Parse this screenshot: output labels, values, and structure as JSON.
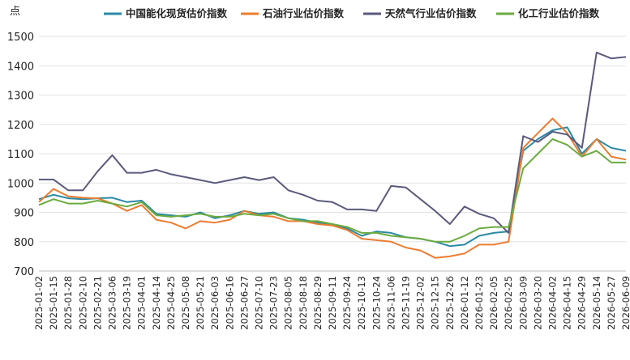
{
  "chart_data": {
    "type": "line",
    "ylabel": "点",
    "ylim": [
      700,
      1500
    ],
    "yticks": [
      700,
      800,
      900,
      1000,
      1100,
      1200,
      1300,
      1400,
      1500
    ],
    "grid": true,
    "legend_position": "top",
    "x": [
      "2025-01-02",
      "2025-01-15",
      "2025-01-28",
      "2025-02-10",
      "2025-02-21",
      "2025-03-06",
      "2025-03-19",
      "2025-04-01",
      "2025-04-14",
      "2025-04-25",
      "2025-05-08",
      "2025-05-21",
      "2025-06-03",
      "2025-06-16",
      "2025-06-27",
      "2025-07-10",
      "2025-07-23",
      "2025-08-05",
      "2025-08-18",
      "2025-08-29",
      "2025-09-11",
      "2025-09-24",
      "2025-10-13",
      "2025-10-24",
      "2025-11-06",
      "2025-11-19",
      "2025-12-02",
      "2025-12-15",
      "2025-12-26",
      "2026-01-12",
      "2026-01-23",
      "2026-02-05",
      "2026-02-25",
      "2026-03-09",
      "2026-03-20",
      "2026-04-02",
      "2026-04-15",
      "2026-04-29",
      "2026-05-14",
      "2026-05-27",
      "2026-06-09"
    ],
    "series": [
      {
        "name": "中国能化现货估价指数",
        "color": "#2a8aa4",
        "values": [
          945,
          960,
          948,
          945,
          948,
          950,
          935,
          940,
          895,
          890,
          885,
          900,
          880,
          890,
          905,
          895,
          900,
          880,
          875,
          865,
          860,
          845,
          820,
          835,
          830,
          815,
          810,
          800,
          785,
          790,
          820,
          830,
          835,
          1110,
          1150,
          1180,
          1190,
          1100,
          1150,
          1120,
          1110
        ]
      },
      {
        "name": "石油行业估价指数",
        "color": "#ec7c31",
        "values": [
          935,
          980,
          955,
          950,
          948,
          930,
          905,
          925,
          875,
          865,
          845,
          870,
          865,
          875,
          905,
          890,
          885,
          870,
          870,
          860,
          855,
          840,
          810,
          805,
          800,
          780,
          770,
          745,
          750,
          760,
          790,
          790,
          800,
          1120,
          1170,
          1220,
          1170,
          1090,
          1150,
          1090,
          1080
        ]
      },
      {
        "name": "天然气行业估价指数",
        "color": "#5b5a7d",
        "values": [
          1012,
          1012,
          975,
          975,
          1040,
          1095,
          1035,
          1035,
          1045,
          1030,
          1020,
          1010,
          1000,
          1010,
          1020,
          1010,
          1020,
          975,
          960,
          940,
          935,
          910,
          910,
          905,
          990,
          985,
          945,
          905,
          860,
          920,
          895,
          880,
          830,
          1160,
          1140,
          1175,
          1165,
          1120,
          1445,
          1425,
          1430
        ]
      },
      {
        "name": "化工行业估价指数",
        "color": "#6bab3f",
        "values": [
          925,
          945,
          930,
          930,
          940,
          930,
          920,
          935,
          890,
          885,
          890,
          895,
          885,
          885,
          895,
          890,
          895,
          880,
          870,
          870,
          860,
          850,
          830,
          830,
          820,
          815,
          810,
          800,
          800,
          820,
          845,
          850,
          850,
          1050,
          1100,
          1150,
          1130,
          1090,
          1110,
          1070,
          1070
        ]
      }
    ]
  }
}
